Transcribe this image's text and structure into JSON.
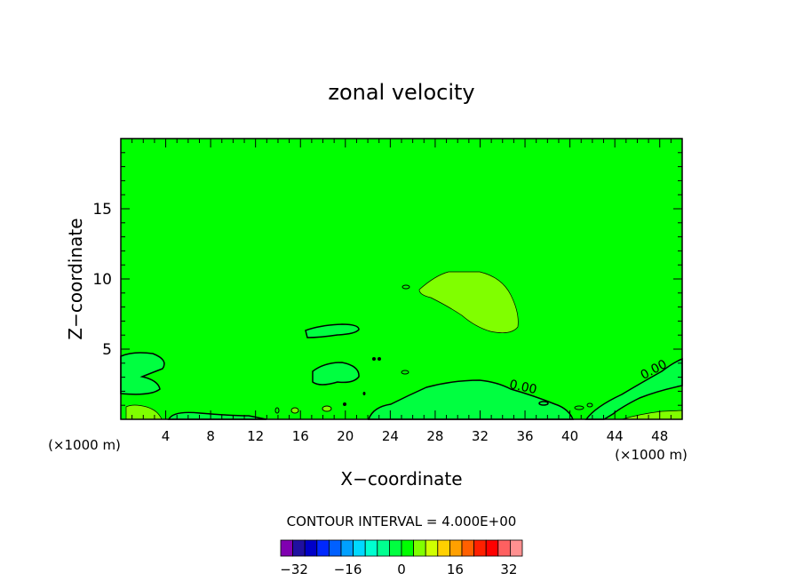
{
  "chart_data": {
    "type": "heatmap",
    "title": "zonal velocity",
    "xlabel": "X−coordinate",
    "ylabel": "Z−coordinate",
    "x_unit_left": "(×1000 m)",
    "x_unit_right": "(×1000 m)",
    "xlim": [
      0,
      50
    ],
    "ylim": [
      0,
      20
    ],
    "xticks": [
      4,
      8,
      12,
      16,
      20,
      24,
      28,
      32,
      36,
      40,
      44,
      48
    ],
    "yticks": [
      5,
      10,
      15
    ],
    "contour_labels": [
      "0.00",
      "0.00"
    ],
    "contour_interval_text": "CONTOUR INTERVAL = 4.000E+00",
    "colorbar": {
      "min": -36,
      "max": 36,
      "step": 4,
      "tick_values": [
        -32,
        -16,
        0,
        16,
        32
      ],
      "tick_labels": [
        "−32",
        "−16",
        "0",
        "16",
        "32"
      ],
      "colors": [
        "#8000b0",
        "#2010a0",
        "#0000c8",
        "#0028ff",
        "#0060ff",
        "#00a0ff",
        "#00d8ff",
        "#00ffd0",
        "#00ff90",
        "#00ff40",
        "#00ff00",
        "#80ff00",
        "#d0ff00",
        "#ffd000",
        "#ffa000",
        "#ff6000",
        "#ff2000",
        "#ff0000",
        "#ff6060",
        "#ff9090"
      ]
    },
    "regions": {
      "background_value_range": [
        0,
        4
      ],
      "background_color": "#00ff00",
      "negative_color": "#00ff40",
      "positive_color": "#80ff00"
    }
  }
}
